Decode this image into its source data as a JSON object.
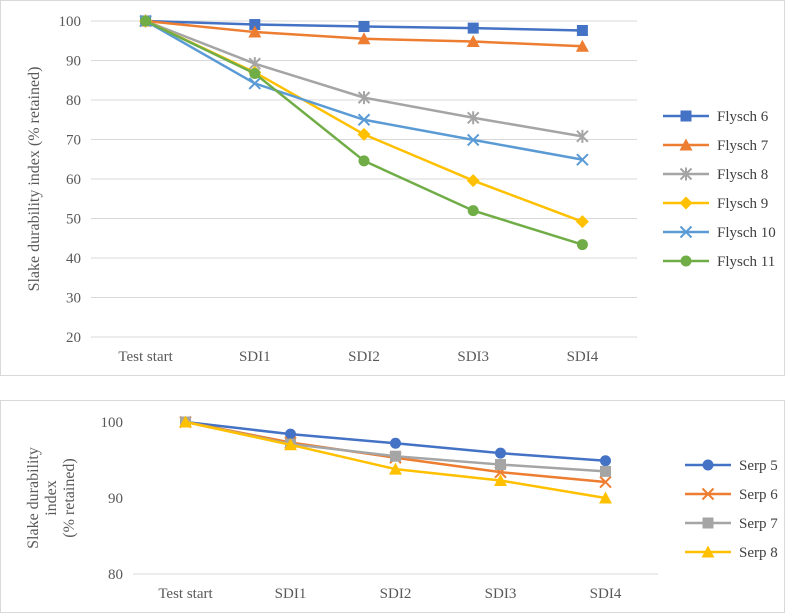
{
  "chart_data": [
    {
      "type": "line",
      "title": "",
      "xlabel": "",
      "ylabel": "Slake durability index (% retained)",
      "categories": [
        "Test start",
        "SDI1",
        "SDI2",
        "SDI3",
        "SDI4"
      ],
      "ylim": [
        20,
        100
      ],
      "yticks": [
        20,
        30,
        40,
        50,
        60,
        70,
        80,
        90,
        100
      ],
      "grid": true,
      "legend": "right",
      "series": [
        {
          "name": "Flysch 6",
          "color": "#4472c4",
          "marker": "square",
          "values": [
            100,
            99.1,
            98.6,
            98.2,
            97.6
          ]
        },
        {
          "name": "Flysch 7",
          "color": "#ed7d31",
          "marker": "triangle",
          "values": [
            100,
            97.2,
            95.5,
            94.8,
            93.6
          ]
        },
        {
          "name": "Flysch 8",
          "color": "#a5a5a5",
          "marker": "star",
          "values": [
            100,
            89.2,
            80.6,
            75.5,
            70.8
          ]
        },
        {
          "name": "Flysch 9",
          "color": "#ffc000",
          "marker": "diamond",
          "values": [
            100,
            87.0,
            71.3,
            59.6,
            49.2
          ]
        },
        {
          "name": "Flysch 10",
          "color": "#5b9bd5",
          "marker": "x",
          "values": [
            100,
            84.2,
            75.0,
            69.9,
            64.9
          ]
        },
        {
          "name": "Flysch 11",
          "color": "#70ad47",
          "marker": "circle",
          "values": [
            100,
            86.7,
            64.6,
            52.0,
            43.4
          ]
        }
      ]
    },
    {
      "type": "line",
      "title": "",
      "xlabel": "",
      "ylabel": "Slake durability index (% retained)",
      "ylabel_lines": [
        "Slake durability",
        "index",
        "(% retained)"
      ],
      "categories": [
        "Test start",
        "SDI1",
        "SDI2",
        "SDI3",
        "SDI4"
      ],
      "ylim": [
        80,
        100
      ],
      "yticks": [
        80,
        90,
        100
      ],
      "grid": false,
      "legend": "right",
      "series": [
        {
          "name": "Serp 5",
          "color": "#4472c4",
          "marker": "circle",
          "values": [
            100,
            98.4,
            97.2,
            95.9,
            94.9
          ]
        },
        {
          "name": "Serp 6",
          "color": "#ed7d31",
          "marker": "x",
          "values": [
            100,
            97.3,
            95.3,
            93.4,
            92.1
          ]
        },
        {
          "name": "Serp 7",
          "color": "#a5a5a5",
          "marker": "square",
          "values": [
            100,
            97.1,
            95.5,
            94.4,
            93.5
          ]
        },
        {
          "name": "Serp 8",
          "color": "#ffc000",
          "marker": "triangle",
          "values": [
            100,
            97.0,
            93.8,
            92.3,
            90.0
          ]
        }
      ]
    }
  ]
}
